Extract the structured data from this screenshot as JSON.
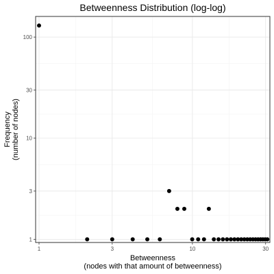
{
  "chart_data": {
    "type": "scatter",
    "title": "Betweenness Distribution (log-log)",
    "xlabel": [
      "Betweenness",
      "(nodes with that amount of betweenness)"
    ],
    "ylabel": [
      "Frequency",
      "(number of nodes)"
    ],
    "x_scale": "log",
    "y_scale": "log",
    "xlim": [
      0.95,
      32
    ],
    "ylim": [
      0.93,
      160
    ],
    "x_ticks": [
      1,
      3,
      10,
      30
    ],
    "y_ticks": [
      1,
      3,
      10,
      30,
      100
    ],
    "x_tick_labels": [
      "1",
      "3",
      "10",
      "30"
    ],
    "y_tick_labels": [
      "1",
      "3",
      "10",
      "30",
      "100"
    ],
    "grid": true,
    "point_color": "#000000",
    "points": [
      {
        "x": 1,
        "y": 130
      },
      {
        "x": 2.06,
        "y": 1
      },
      {
        "x": 3,
        "y": 1
      },
      {
        "x": 4.08,
        "y": 1
      },
      {
        "x": 5.08,
        "y": 1
      },
      {
        "x": 6.13,
        "y": 1
      },
      {
        "x": 7.05,
        "y": 3
      },
      {
        "x": 7.98,
        "y": 2
      },
      {
        "x": 8.85,
        "y": 2
      },
      {
        "x": 9.97,
        "y": 1
      },
      {
        "x": 10.9,
        "y": 1
      },
      {
        "x": 11.9,
        "y": 1
      },
      {
        "x": 12.8,
        "y": 2
      },
      {
        "x": 13.8,
        "y": 1
      },
      {
        "x": 14.8,
        "y": 1
      },
      {
        "x": 15.8,
        "y": 1
      },
      {
        "x": 16.8,
        "y": 1
      },
      {
        "x": 17.8,
        "y": 1
      },
      {
        "x": 18.8,
        "y": 1
      },
      {
        "x": 19.8,
        "y": 1
      },
      {
        "x": 20.8,
        "y": 1
      },
      {
        "x": 21.8,
        "y": 1
      },
      {
        "x": 22.8,
        "y": 1
      },
      {
        "x": 23.8,
        "y": 1
      },
      {
        "x": 24.8,
        "y": 1
      },
      {
        "x": 25.8,
        "y": 1
      },
      {
        "x": 26.8,
        "y": 1
      },
      {
        "x": 27.8,
        "y": 1
      },
      {
        "x": 28.8,
        "y": 1
      },
      {
        "x": 29.8,
        "y": 1
      },
      {
        "x": 30.8,
        "y": 1
      }
    ]
  }
}
